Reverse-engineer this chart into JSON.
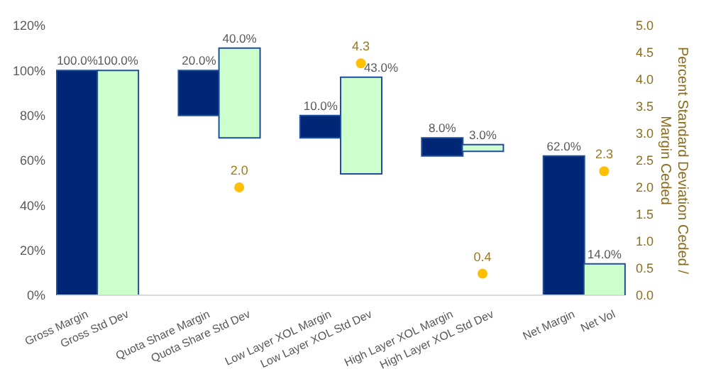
{
  "chart_data": {
    "type": "bar",
    "categories": [
      "Gross Margin",
      "Gross Std Dev",
      null,
      "Quota Share Margin",
      "Quota Share Std Dev",
      null,
      "Low Layer XOL Margin",
      "Low Layer XOL Std Dev",
      null,
      "High Layer XOL Margin",
      "High Layer XOL Std Dev",
      null,
      "Net Margin",
      "Net Vol"
    ],
    "y2label": "Percent Standard Deviation Ceded / Margin Ceded",
    "ylim": [
      0,
      120
    ],
    "yticks": [
      {
        "value": 0,
        "label": "0%"
      },
      {
        "value": 20,
        "label": "20%"
      },
      {
        "value": 40,
        "label": "40%"
      },
      {
        "value": 60,
        "label": "60%"
      },
      {
        "value": 80,
        "label": "80%"
      },
      {
        "value": 100,
        "label": "100%"
      },
      {
        "value": 120,
        "label": "120%"
      }
    ],
    "y2lim": [
      0,
      5
    ],
    "y2ticks": [
      {
        "value": 0,
        "label": "0.0"
      },
      {
        "value": 0.5,
        "label": "0.5"
      },
      {
        "value": 1,
        "label": "1.0"
      },
      {
        "value": 1.5,
        "label": "1.5"
      },
      {
        "value": 2,
        "label": "2.0"
      },
      {
        "value": 2.5,
        "label": "2.5"
      },
      {
        "value": 3,
        "label": "3.0"
      },
      {
        "value": 3.5,
        "label": "3.5"
      },
      {
        "value": 4,
        "label": "4.0"
      },
      {
        "value": 4.5,
        "label": "4.5"
      },
      {
        "value": 5,
        "label": "5.0"
      }
    ],
    "series": [
      {
        "type": "bar",
        "values": [
          100,
          100,
          null,
          20,
          40,
          null,
          10,
          43,
          null,
          8,
          3,
          null,
          62,
          14
        ],
        "base": [
          0,
          0,
          null,
          80,
          70,
          null,
          70,
          54,
          null,
          62,
          64,
          null,
          0,
          0
        ],
        "colors": [
          "#002776",
          "#ccffcc",
          null,
          "#002776",
          "#ccffcc",
          null,
          "#002776",
          "#ccffcc",
          null,
          "#002776",
          "#ccffcc",
          null,
          "#002776",
          "#ccffcc"
        ],
        "value_labels": [
          "100.0%",
          "100.0%",
          null,
          "20.0%",
          "40.0%",
          null,
          "10.0%",
          "43.0%",
          null,
          "8.0%",
          "3.0%",
          null,
          "62.0%",
          "14.0%"
        ]
      },
      {
        "type": "scatter",
        "axis": "y2",
        "x": [
          "Quota Share Std Dev",
          "Low Layer XOL Std Dev",
          "High Layer XOL Std Dev",
          "Net Vol"
        ],
        "values": [
          2.0,
          4.3,
          0.4,
          2.3
        ],
        "color": "#ffc000",
        "value_labels": [
          "2.0",
          "4.3",
          "0.4",
          "2.3"
        ]
      }
    ]
  }
}
